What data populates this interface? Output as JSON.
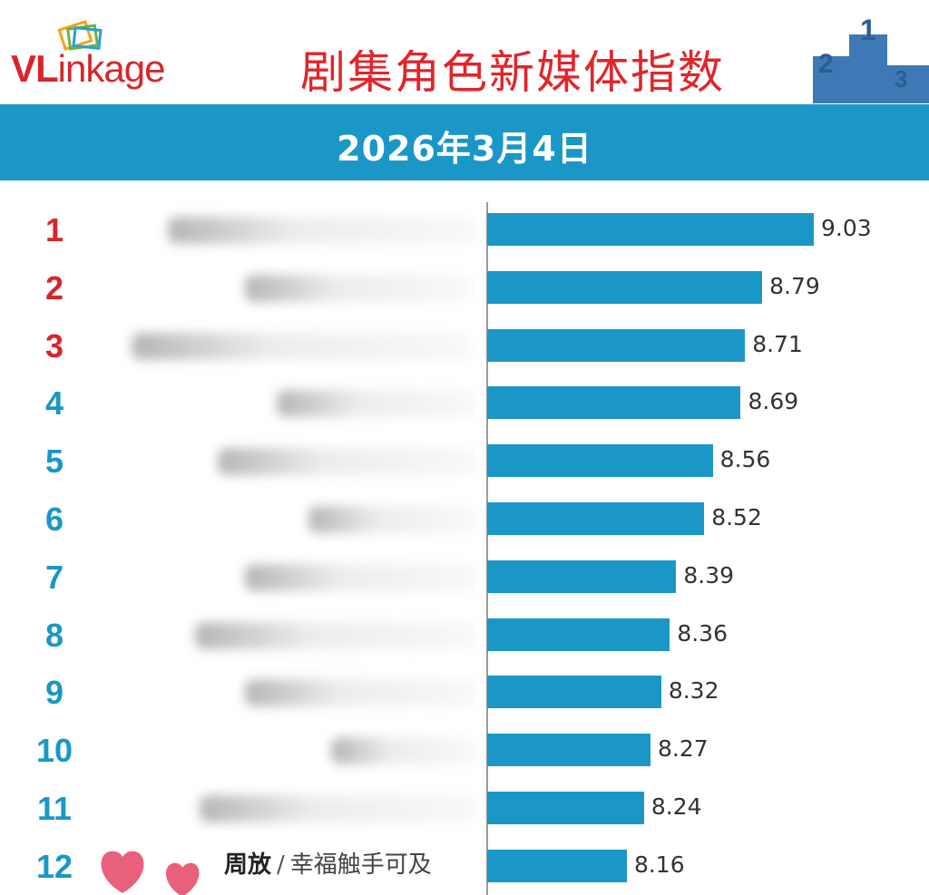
{
  "header": {
    "logo_vl": "VL",
    "logo_rest": "inkage",
    "title": "剧集角色新媒体指数",
    "podium_labels": [
      "2",
      "1",
      "3"
    ]
  },
  "date": "2026年3月4日",
  "colors": {
    "bar": "#1a97c6",
    "top_rank": "#d7262b",
    "rank": "#1a97c6",
    "title": "#e0262b"
  },
  "chart_data": {
    "type": "bar",
    "orientation": "horizontal",
    "categories": [
      "1",
      "2",
      "3",
      "4",
      "5",
      "6",
      "7",
      "8",
      "9",
      "10",
      "11",
      "12"
    ],
    "values": [
      9.03,
      8.79,
      8.71,
      8.69,
      8.56,
      8.52,
      8.39,
      8.36,
      8.32,
      8.27,
      8.24,
      8.16
    ],
    "xlim": [
      7.51,
      9.03
    ],
    "visible_labels": {
      "12": {
        "actor": "周放",
        "separator": "/",
        "drama": "幸福触手可及"
      }
    },
    "title": "剧集角色新媒体指数",
    "xlabel": "",
    "ylabel": "",
    "grid": false
  }
}
